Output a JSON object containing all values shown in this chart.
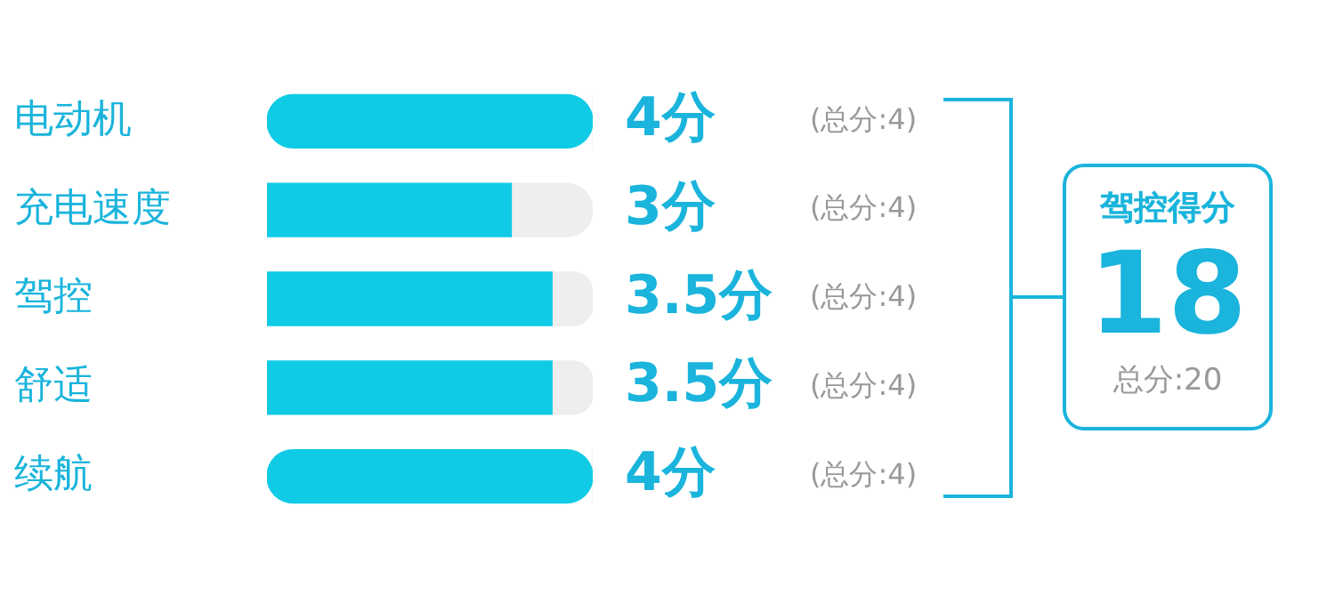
{
  "chart_data": {
    "type": "bar",
    "orientation": "horizontal",
    "stacked": true,
    "categories": [
      "电动机",
      "充电速度",
      "驾控",
      "舒适",
      "续航"
    ],
    "series": [
      {
        "color": "#10cbe6",
        "values": [
          4,
          3,
          3.5,
          3.5,
          4
        ],
        "value_labels": [
          "4分",
          "3分",
          "3.5分",
          "3.5分",
          "4分"
        ]
      },
      {
        "color": "#eeeeee",
        "values": [
          0,
          1,
          0.5,
          0.5,
          0
        ]
      }
    ],
    "xlim": [
      0,
      4
    ],
    "tick_labels": "y",
    "grid": false,
    "legend": false,
    "annotations": [
      "(总分:4)",
      "(总分:4)",
      "(总分:4)",
      "(总分:4)",
      "(总分:4)",
      "驾控得分",
      "18",
      "总分:20"
    ]
  }
}
